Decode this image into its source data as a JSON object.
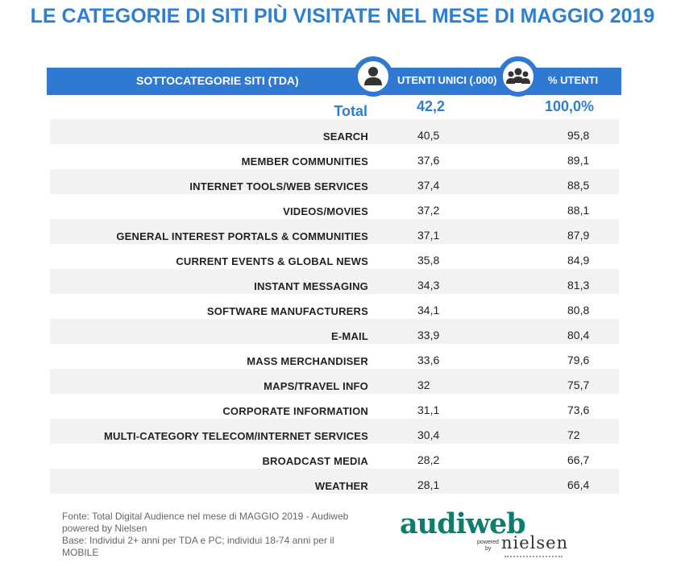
{
  "title": "LE CATEGORIE DI SITI PIÙ VISITATE NEL MESE DI MAGGIO 2019",
  "header": {
    "subcategory_label": "SOTTOCATEGORIE SITI  (TDA)",
    "users_label": "UTENTI UNICI (.000)",
    "pct_label": "% UTENTI",
    "users_icon": "user-icon",
    "pct_icon": "group-icon",
    "bar_color": "#2f79d2"
  },
  "total": {
    "label": "Total",
    "users": "42,2",
    "pct": "100,0%"
  },
  "chart_data": {
    "type": "table",
    "columns": [
      "SOTTOCATEGORIE SITI  (TDA)",
      "UTENTI UNICI (.000)",
      "% UTENTI"
    ],
    "rows": [
      {
        "label": "SEARCH",
        "users": "40,5",
        "pct": "95,8"
      },
      {
        "label": "MEMBER COMMUNITIES",
        "users": "37,6",
        "pct": "89,1"
      },
      {
        "label": "INTERNET TOOLS/WEB SERVICES",
        "users": "37,4",
        "pct": "88,5"
      },
      {
        "label": "VIDEOS/MOVIES",
        "users": "37,2",
        "pct": "88,1"
      },
      {
        "label": "GENERAL INTEREST PORTALS & COMMUNITIES",
        "users": "37,1",
        "pct": "87,9"
      },
      {
        "label": "CURRENT EVENTS & GLOBAL NEWS",
        "users": "35,8",
        "pct": "84,9"
      },
      {
        "label": "INSTANT MESSAGING",
        "users": "34,3",
        "pct": "81,3"
      },
      {
        "label": "SOFTWARE MANUFACTURERS",
        "users": "34,1",
        "pct": "80,8"
      },
      {
        "label": "E-MAIL",
        "users": "33,9",
        "pct": "80,4"
      },
      {
        "label": "MASS MERCHANDISER",
        "users": "33,6",
        "pct": "79,6"
      },
      {
        "label": "MAPS/TRAVEL INFO",
        "users": "32",
        "pct": "75,7"
      },
      {
        "label": "CORPORATE INFORMATION",
        "users": "31,1",
        "pct": "73,6"
      },
      {
        "label": "MULTI-CATEGORY TELECOM/INTERNET SERVICES",
        "users": "30,4",
        "pct": "72"
      },
      {
        "label": "BROADCAST MEDIA",
        "users": "28,2",
        "pct": "66,7"
      },
      {
        "label": "WEATHER",
        "users": "28,1",
        "pct": "66,4"
      }
    ]
  },
  "footnote": {
    "line1": "Fonte: Total Digital Audience nel mese di MAGGIO 2019 - Audiweb",
    "line2": "powered by Nielsen",
    "line3": "Base: Individui 2+ anni per TDA e PC; individui 18-74 anni per il",
    "line4": "MOBILE"
  },
  "logo": {
    "main": "audiweb",
    "powered": "powered",
    "by": "by",
    "nielsen": "nielsen",
    "color": "#0f7d6e"
  }
}
